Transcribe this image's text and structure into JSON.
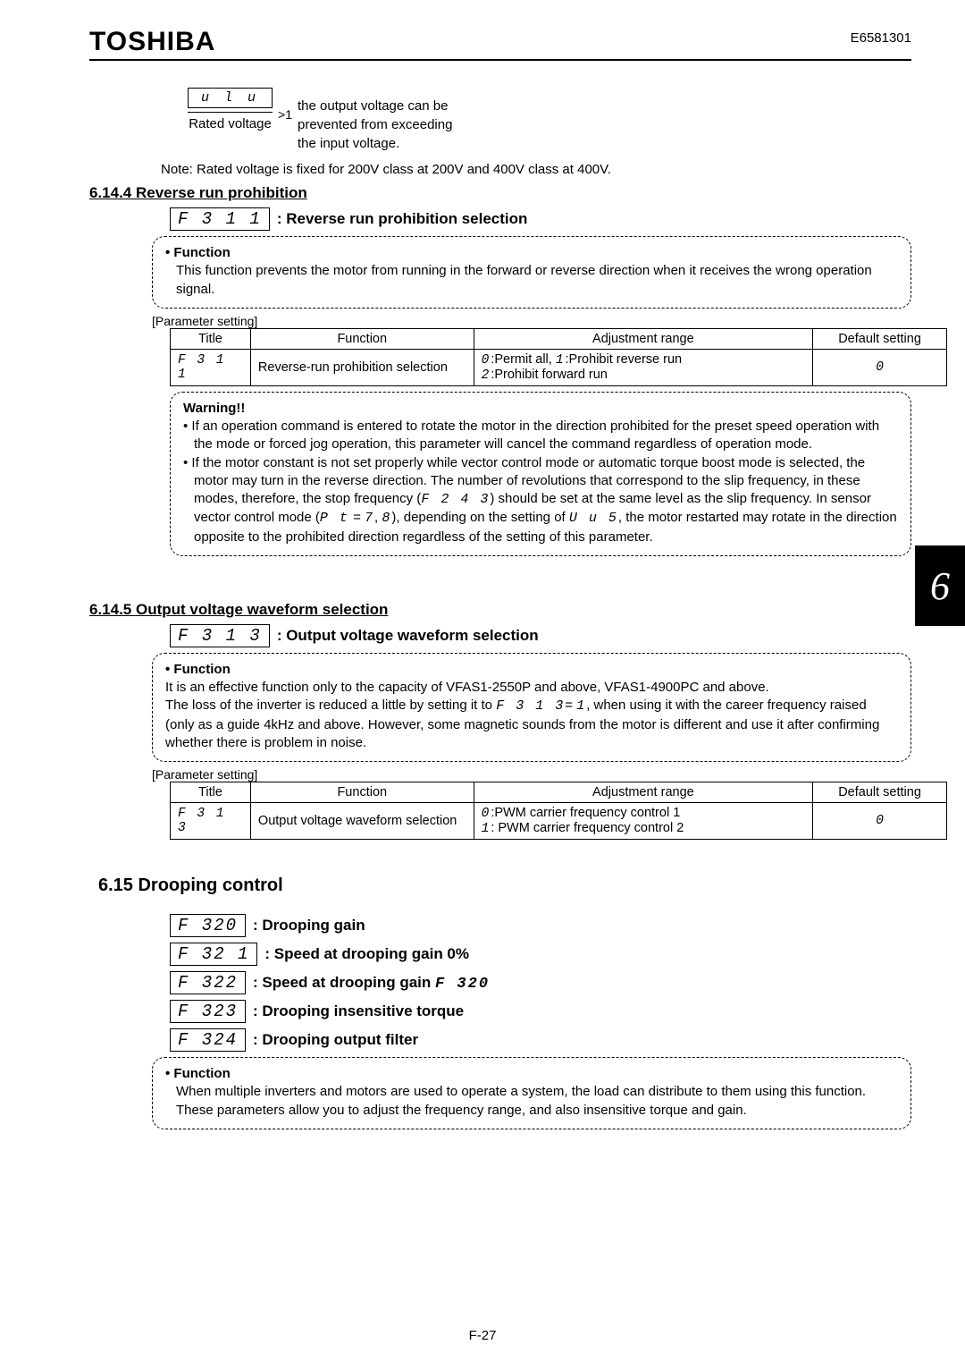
{
  "brand": "TOSHIBA",
  "docnum": "E6581301",
  "sideTab": "6",
  "footer": "F-27",
  "formula": {
    "topSeg": "u l u",
    "bottom": "Rated voltage",
    "gt1": ">1",
    "desc1": "the output voltage can be",
    "desc2": "prevented from exceeding",
    "desc3": "the input voltage."
  },
  "note1": "Note: Rated voltage is fixed for 200V class at 200V and 400V class at 400V.",
  "sec6144": {
    "heading": "6.14.4  Reverse  run  prohibition",
    "paramCode": "F 3 1 1",
    "paramLabel": ": Reverse run prohibition selection",
    "functionTitle": "• Function",
    "functionBody": "This function prevents the motor from running in the forward or reverse direction when it receives the wrong operation signal.",
    "tableCaption": "[Parameter setting]",
    "th": {
      "title": "Title",
      "func": "Function",
      "range": "Adjustment range",
      "def": "Default setting"
    },
    "row": {
      "title": "F 3 1 1",
      "func": "Reverse-run prohibition selection",
      "range0": "0",
      "range0txt": ":Permit all,  ",
      "range1": "1",
      "range1txt": ":Prohibit reverse run",
      "range2": "2",
      "range2txt": ":Prohibit forward run",
      "def": "0"
    },
    "warningTitle": "Warning!!",
    "warn1": "If an operation command is entered to rotate the motor in the direction prohibited for the preset speed operation with the mode or forced jog operation, this parameter will cancel the command regardless of operation mode.",
    "warn2a": "If the motor constant is not set properly while vector control mode or automatic torque boost mode is selected, the motor may turn in the reverse direction. The number of revolutions that correspond to the slip frequency, in these modes, therefore, the stop frequency (",
    "warn2code1": "F 2 4 3",
    "warn2b": ") should be set at the same level as the slip frequency. In sensor vector control mode (",
    "warn2code2": "P t",
    "warn2eq1": " = ",
    "warn2code3": "7",
    "warn2comma": ", ",
    "warn2code4": "8",
    "warn2c": "), depending on the setting of ",
    "warn2code5": "U u 5",
    "warn2d": ", the motor restarted may rotate in the direction opposite to the prohibited direction regardless of the setting of this parameter."
  },
  "sec6145": {
    "heading": "6.14.5  Output  voltage  waveform  selection",
    "paramCode": "F 3 1 3",
    "paramLabel": ": Output voltage waveform selection",
    "functionTitle": "• Function",
    "fb1": "It is an effective function only to the capacity of VFAS1-2550P and above, VFAS1-4900PC and above.",
    "fb2a": "The loss of the inverter is reduced a little by setting it to ",
    "fb2code": "F 3  1 3",
    "fb2eq": "= ",
    "fb2val": "1",
    "fb2b": ", when using it with the career frequency raised (only as a guide 4kHz and above.  However, some magnetic sounds from the motor is different and use it after confirming whether there is problem in noise.",
    "tableCaption": "[Parameter setting]",
    "th": {
      "title": "Title",
      "func": "Function",
      "range": "Adjustment range",
      "def": "Default setting"
    },
    "row": {
      "title": "F 3 1 3",
      "func": "Output voltage waveform selection",
      "range0": "0",
      "range0txt": ":PWM carrier frequency control 1",
      "range1": "1",
      "range1txt": ": PWM carrier frequency control 2",
      "def": "0"
    }
  },
  "sec615": {
    "heading": "6.15     Drooping control",
    "params": [
      {
        "code": "F 320",
        "label": ": Drooping gain"
      },
      {
        "code": "F 32 1",
        "label": ": Speed at drooping gain 0%"
      },
      {
        "code": "F 322",
        "labelA": ": Speed at drooping gain ",
        "codeB": "F 320"
      },
      {
        "code": "F 323",
        "label": ": Drooping insensitive torque"
      },
      {
        "code": "F 324",
        "label": ": Drooping output filter"
      }
    ],
    "functionTitle": "• Function",
    "functionBody": "When multiple inverters and motors are used to operate a system, the load can distribute to them using this function. These parameters allow you to adjust the frequency range, and also insensitive torque and gain."
  }
}
